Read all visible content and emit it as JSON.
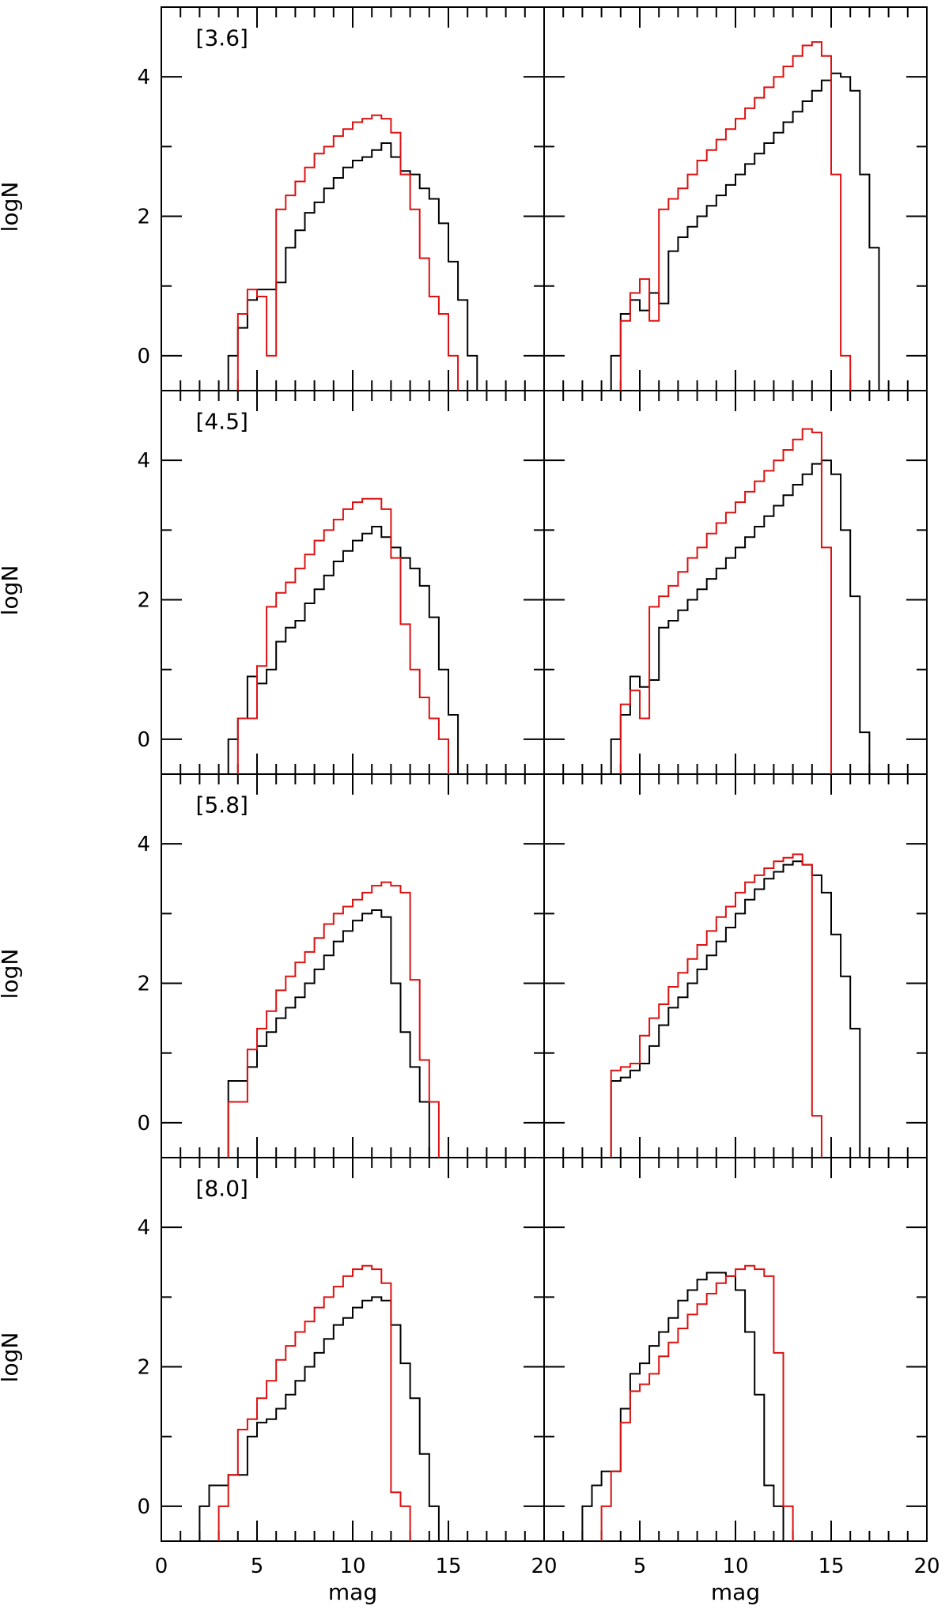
{
  "chart_data": {
    "type": "line",
    "layout": "4 rows x 2 columns, shared axes",
    "xlabel": "mag",
    "ylabel": "logN",
    "xlim": [
      0,
      20
    ],
    "ylim": [
      -0.5,
      5.0
    ],
    "xticks": [
      0,
      5,
      10,
      15,
      20
    ],
    "yticks": [
      0,
      2,
      4
    ],
    "bin_width": 0.5,
    "series_colors": {
      "black": "#000000",
      "red": "#dd1111"
    },
    "bracket": {
      "open": "[",
      "close": "]"
    },
    "panels": [
      {
        "row": 0,
        "col": 0,
        "band": "3.6",
        "series": [
          {
            "color": "black",
            "x0": 3.5,
            "values": [
              0,
              0.4,
              0.8,
              0.95,
              0.95,
              1.05,
              1.55,
              1.8,
              2.05,
              2.2,
              2.4,
              2.55,
              2.7,
              2.8,
              2.85,
              2.95,
              3.05,
              2.85,
              2.65,
              2.6,
              2.4,
              2.25,
              1.9,
              1.35,
              0.8,
              0
            ]
          },
          {
            "color": "red",
            "x0": 4.0,
            "values": [
              0.6,
              0.95,
              0.85,
              0,
              2.1,
              2.3,
              2.5,
              2.7,
              2.9,
              3.0,
              3.15,
              3.25,
              3.35,
              3.4,
              3.45,
              3.4,
              3.2,
              2.6,
              2.1,
              1.4,
              0.85,
              0.6,
              0
            ]
          }
        ]
      },
      {
        "row": 0,
        "col": 1,
        "band": "",
        "series": [
          {
            "color": "black",
            "x0": 3.5,
            "values": [
              0,
              0.6,
              0.8,
              0.65,
              0.9,
              0.75,
              1.5,
              1.7,
              1.85,
              2.0,
              2.15,
              2.3,
              2.45,
              2.6,
              2.75,
              2.9,
              3.05,
              3.2,
              3.35,
              3.5,
              3.65,
              3.8,
              3.95,
              4.05,
              4.0,
              3.8,
              2.6,
              1.55
            ]
          },
          {
            "color": "red",
            "x0": 4.0,
            "values": [
              0.5,
              0.9,
              1.1,
              0.5,
              2.1,
              2.25,
              2.4,
              2.6,
              2.8,
              2.95,
              3.1,
              3.25,
              3.4,
              3.55,
              3.7,
              3.85,
              4.0,
              4.15,
              4.3,
              4.45,
              4.5,
              4.3,
              2.6,
              0
            ]
          }
        ]
      },
      {
        "row": 1,
        "col": 0,
        "band": "4.5",
        "series": [
          {
            "color": "black",
            "x0": 3.5,
            "values": [
              0,
              0.3,
              0.9,
              0.8,
              1.0,
              1.4,
              1.6,
              1.7,
              1.95,
              2.15,
              2.35,
              2.55,
              2.7,
              2.85,
              2.95,
              3.05,
              2.9,
              2.75,
              2.6,
              2.45,
              2.2,
              1.75,
              1.0,
              0.35
            ]
          },
          {
            "color": "red",
            "x0": 4.0,
            "values": [
              0.3,
              0.3,
              1.05,
              1.9,
              2.1,
              2.25,
              2.45,
              2.65,
              2.85,
              3.0,
              3.15,
              3.3,
              3.4,
              3.45,
              3.45,
              3.3,
              2.6,
              1.65,
              1.0,
              0.6,
              0.3,
              0
            ]
          }
        ]
      },
      {
        "row": 1,
        "col": 1,
        "band": "",
        "series": [
          {
            "color": "black",
            "x0": 3.5,
            "values": [
              0,
              0.35,
              0.9,
              0.75,
              0.85,
              1.6,
              1.7,
              1.85,
              2.0,
              2.15,
              2.3,
              2.45,
              2.6,
              2.75,
              2.9,
              3.05,
              3.2,
              3.35,
              3.5,
              3.65,
              3.8,
              3.95,
              4.0,
              3.8,
              3.0,
              2.05,
              0.1
            ]
          },
          {
            "color": "red",
            "x0": 4.0,
            "values": [
              0.5,
              0.7,
              0.3,
              1.9,
              2.05,
              2.2,
              2.4,
              2.6,
              2.75,
              2.95,
              3.1,
              3.25,
              3.4,
              3.55,
              3.7,
              3.85,
              4.0,
              4.15,
              4.3,
              4.45,
              4.4,
              2.75
            ]
          }
        ]
      },
      {
        "row": 2,
        "col": 0,
        "band": "5.8",
        "series": [
          {
            "color": "black",
            "x0": 3.5,
            "values": [
              0.6,
              0.6,
              0.8,
              1.1,
              1.3,
              1.5,
              1.65,
              1.8,
              2.0,
              2.2,
              2.4,
              2.6,
              2.75,
              2.9,
              3.0,
              3.05,
              2.95,
              2.0,
              1.3,
              0.8,
              0.3
            ]
          },
          {
            "color": "red",
            "x0": 3.5,
            "values": [
              0.3,
              0.3,
              1.05,
              1.35,
              1.6,
              1.9,
              2.1,
              2.3,
              2.45,
              2.65,
              2.85,
              3.0,
              3.1,
              3.2,
              3.3,
              3.4,
              3.45,
              3.4,
              3.3,
              2.05,
              0.9,
              0.3
            ]
          }
        ]
      },
      {
        "row": 2,
        "col": 1,
        "band": "",
        "series": [
          {
            "color": "black",
            "x0": 3.5,
            "values": [
              0.6,
              0.65,
              0.75,
              0.85,
              1.1,
              1.4,
              1.65,
              1.8,
              2.0,
              2.2,
              2.4,
              2.6,
              2.8,
              3.0,
              3.2,
              3.35,
              3.5,
              3.6,
              3.7,
              3.75,
              3.7,
              3.55,
              3.3,
              2.7,
              2.1,
              1.35
            ]
          },
          {
            "color": "red",
            "x0": 3.5,
            "values": [
              0.75,
              0.8,
              0.85,
              1.25,
              1.5,
              1.7,
              1.95,
              2.15,
              2.35,
              2.55,
              2.75,
              2.95,
              3.1,
              3.3,
              3.45,
              3.55,
              3.65,
              3.75,
              3.8,
              3.85,
              3.7,
              0.1
            ]
          }
        ]
      },
      {
        "row": 3,
        "col": 0,
        "band": "8.0",
        "series": [
          {
            "color": "black",
            "x0": 2.0,
            "values": [
              0,
              0.3,
              0.3,
              0.45,
              0.45,
              1.0,
              1.2,
              1.25,
              1.4,
              1.6,
              1.8,
              2.0,
              2.2,
              2.4,
              2.6,
              2.7,
              2.85,
              2.95,
              3.0,
              2.95,
              2.6,
              2.05,
              1.55,
              0.75,
              0
            ]
          },
          {
            "color": "red",
            "x0": 3.0,
            "values": [
              0,
              0.45,
              1.1,
              1.25,
              1.55,
              1.8,
              2.1,
              2.3,
              2.5,
              2.65,
              2.85,
              3.0,
              3.15,
              3.3,
              3.4,
              3.45,
              3.4,
              3.2,
              0.2,
              0
            ]
          }
        ]
      },
      {
        "row": 3,
        "col": 1,
        "band": "",
        "series": [
          {
            "color": "black",
            "x0": 2.0,
            "values": [
              0,
              0.3,
              0.5,
              0.5,
              1.4,
              1.9,
              2.05,
              2.3,
              2.5,
              2.7,
              2.95,
              3.1,
              3.25,
              3.35,
              3.35,
              3.3,
              3.1,
              2.5,
              1.6,
              0.3,
              0
            ]
          },
          {
            "color": "red",
            "x0": 3.0,
            "values": [
              0,
              0.5,
              1.2,
              1.65,
              1.75,
              1.9,
              2.15,
              2.35,
              2.55,
              2.75,
              2.9,
              3.05,
              3.2,
              3.3,
              3.4,
              3.45,
              3.4,
              3.3,
              2.2,
              0
            ]
          }
        ]
      }
    ]
  }
}
